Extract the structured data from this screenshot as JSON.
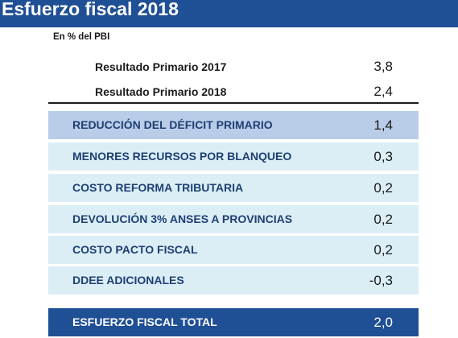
{
  "header": {
    "title": "Esfuerzo fiscal 2018",
    "subtitle": "En % del PBI"
  },
  "primary": [
    {
      "label": "Resultado Primario 2017",
      "value": "3,8"
    },
    {
      "label": "Resultado Primario 2018",
      "value": "2,4"
    }
  ],
  "rows": [
    {
      "label": "REDUCCIÓN DEL DÉFICIT PRIMARIO",
      "value": "1,4"
    },
    {
      "label": "MENORES RECURSOS POR BLANQUEO",
      "value": "0,3"
    },
    {
      "label": "COSTO REFORMA TRIBUTARIA",
      "value": "0,2"
    },
    {
      "label": "DEVOLUCIÓN 3% ANSES A PROVINCIAS",
      "value": "0,2"
    },
    {
      "label": "COSTO PACTO FISCAL",
      "value": "0,2"
    },
    {
      "label": "DDEE ADICIONALES",
      "value": "-0,3"
    }
  ],
  "total": {
    "label": "ESFUERZO FISCAL TOTAL",
    "value": "2,0"
  },
  "colors": {
    "title_bar": "#1f4f95",
    "row_light": "#dbeef6",
    "row_highlight": "#b9cde8",
    "total_bg": "#1f4f95"
  }
}
